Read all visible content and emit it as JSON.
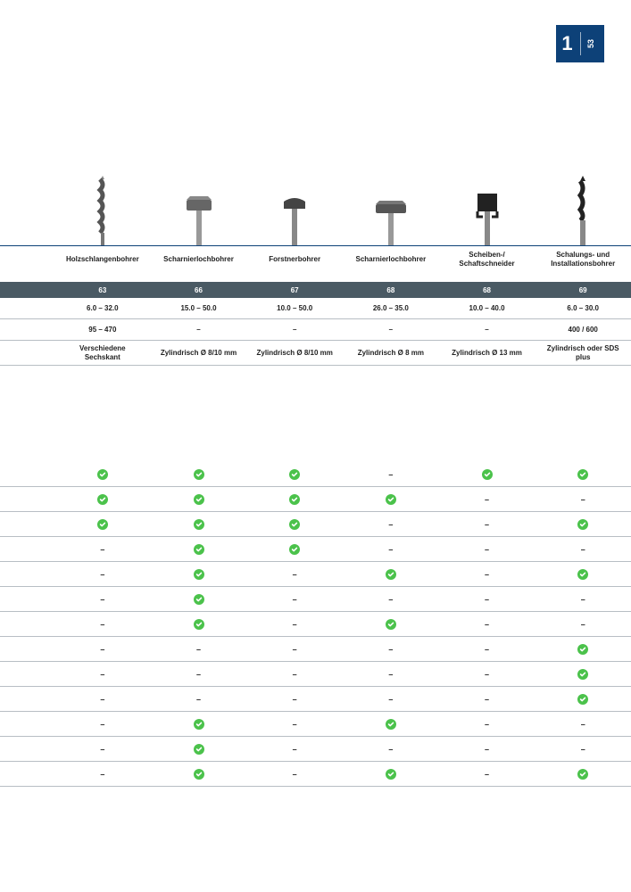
{
  "page": {
    "chapter": "1",
    "number": "53",
    "accent_color": "#0d4178",
    "check_color": "#4bc24b",
    "dark_row_bg": "#4a5a64",
    "border_color": "#b8bec4"
  },
  "products": [
    {
      "name": "Holzschlangenbohrer"
    },
    {
      "name": "Scharnierlochbohrer"
    },
    {
      "name": "Forstnerbohrer"
    },
    {
      "name": "Scharnierlochbohrer"
    },
    {
      "name": "Scheiben-/\nSchaftschneider"
    },
    {
      "name": "Schalungs- und\nInstallationsbohrer"
    }
  ],
  "page_refs": [
    "63",
    "66",
    "67",
    "68",
    "68",
    "69"
  ],
  "specs": [
    [
      "6.0 – 32.0",
      "15.0 – 50.0",
      "10.0 – 50.0",
      "26.0 – 35.0",
      "10.0 – 40.0",
      "6.0 – 30.0"
    ],
    [
      "95 – 470",
      "–",
      "–",
      "–",
      "–",
      "400 / 600"
    ],
    [
      "Verschiedene\nSechskant",
      "Zylindrisch Ø 8/10 mm",
      "Zylindrisch Ø 8/10 mm",
      "Zylindrisch Ø 8 mm",
      "Zylindrisch Ø 13 mm",
      "Zylindrisch oder SDS\nplus"
    ]
  ],
  "check_matrix": [
    [
      "y",
      "y",
      "y",
      "-",
      "y",
      "y"
    ],
    [
      "y",
      "y",
      "y",
      "y",
      "-",
      "-"
    ],
    [
      "y",
      "y",
      "y",
      "-",
      "-",
      "y"
    ],
    [
      "-",
      "y",
      "y",
      "-",
      "-",
      "-"
    ],
    [
      "-",
      "y",
      "-",
      "y",
      "-",
      "y"
    ],
    [
      "-",
      "y",
      "-",
      "-",
      "-",
      "-"
    ],
    [
      "-",
      "y",
      "-",
      "y",
      "-",
      "-"
    ],
    [
      "-",
      "-",
      "-",
      "-",
      "-",
      "y"
    ],
    [
      "-",
      "-",
      "-",
      "-",
      "-",
      "y"
    ],
    [
      "-",
      "-",
      "-",
      "-",
      "-",
      "y"
    ],
    [
      "-",
      "y",
      "-",
      "y",
      "-",
      "-"
    ],
    [
      "-",
      "y",
      "-",
      "-",
      "-",
      "-"
    ],
    [
      "-",
      "y",
      "-",
      "y",
      "-",
      "y"
    ]
  ]
}
